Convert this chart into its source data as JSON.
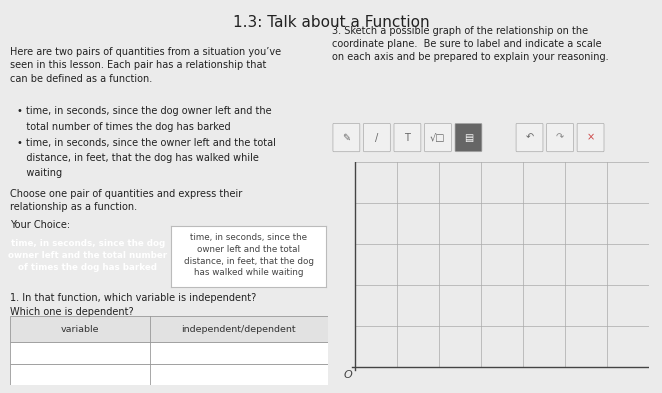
{
  "title": "1.3: Talk about a Function",
  "title_fontsize": 11,
  "bg_color": "#ebebeb",
  "left_text_intro": "Here are two pairs of quantities from a situation you’ve\nseen in this lesson. Each pair has a relationship that\ncan be defined as a function.",
  "bullet1_dot": "• time, in seconds, since the dog owner left and the",
  "bullet1_cont": "   total number of times the dog has barked",
  "bullet2_dot": "• time, in seconds, since the owner left and the total",
  "bullet2_cont1": "   distance, in feet, that the dog has walked while",
  "bullet2_cont2": "   waiting",
  "choose_text": "Choose one pair of quantities and express their\nrelationship as a function.",
  "your_choice_label": "Your Choice:",
  "box1_line1": "time, in seconds, since the dog",
  "box1_line2": "owner left and the total number",
  "box1_line3": "of times the dog has barked",
  "box1_bg": "#3b7ed8",
  "box1_text_color": "#ffffff",
  "box2_line1": "time, in seconds, since the",
  "box2_line2": "owner left and the total",
  "box2_line3": "distance, in feet, that the dog",
  "box2_line4": "has walked while waiting",
  "box2_bg": "#ffffff",
  "box2_text_color": "#444444",
  "box2_border": "#bbbbbb",
  "question1_line1": "1. In that function, which variable is independent?",
  "question1_line2": "Which one is dependent?",
  "table_header1": "variable",
  "table_header2": "independent/dependent",
  "right_text_q3": "3. Sketch a possible graph of the relationship on the\ncoordinate plane.  Be sure to label and indicate a scale\non each axis and be prepared to explain your reasoning.",
  "grid_color": "#aaaaaa",
  "axis_color": "#444444",
  "origin_label": "O",
  "grid_rows": 5,
  "grid_cols": 7,
  "text_color": "#222222",
  "small_fs": 7.0,
  "toolbar_bg_active": "#666666",
  "toolbar_bg_inactive": "#f0f0f0",
  "toolbar_border": "#cccccc"
}
